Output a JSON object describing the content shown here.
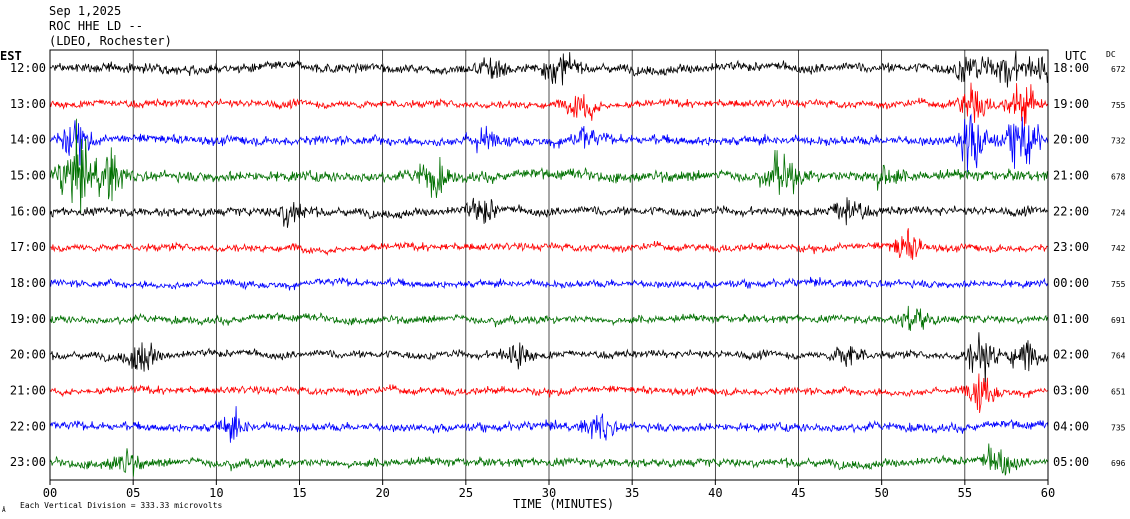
{
  "header": {
    "date": "Sep 1,2025",
    "station": "ROC HHE LD --",
    "network": "(LDEO, Rochester)"
  },
  "axis": {
    "left_label": "EST",
    "right_label": "UTC",
    "dc_label": "DC",
    "x_title": "TIME (MINUTES)",
    "x_ticks": [
      "00",
      "05",
      "10",
      "15",
      "20",
      "25",
      "30",
      "35",
      "40",
      "45",
      "50",
      "55",
      "60"
    ]
  },
  "footer": {
    "scale_note": "Each Vertical Division =  333.33 microvolts"
  },
  "colors": {
    "trace_cycle": [
      "#000000",
      "#ff0000",
      "#0000ff",
      "#007000"
    ],
    "grid": "#000000"
  },
  "chart_data": {
    "type": "line",
    "title": "ROC HHE LD --",
    "xlabel": "TIME (MINUTES)",
    "xlim": [
      0,
      60
    ],
    "rows": [
      {
        "est": "12:00",
        "utc": "18:00",
        "dc": "672",
        "color": "#000000",
        "amp": 0.45,
        "events": [
          {
            "t": 26.5,
            "a": 1.0
          },
          {
            "t": 30.5,
            "a": 1.2
          },
          {
            "t": 55.3,
            "a": 1.4
          },
          {
            "t": 57.5,
            "a": 1.6
          },
          {
            "t": 59.5,
            "a": 1.2
          }
        ]
      },
      {
        "est": "13:00",
        "utc": "19:00",
        "dc": "755",
        "color": "#ff0000",
        "amp": 0.35,
        "events": [
          {
            "t": 32.0,
            "a": 1.4
          },
          {
            "t": 55.5,
            "a": 1.8
          },
          {
            "t": 58.5,
            "a": 2.0
          }
        ]
      },
      {
        "est": "14:00",
        "utc": "20:00",
        "dc": "732",
        "color": "#0000ff",
        "amp": 0.45,
        "events": [
          {
            "t": 1.5,
            "a": 1.6
          },
          {
            "t": 26.0,
            "a": 1.0
          },
          {
            "t": 32.0,
            "a": 1.0
          },
          {
            "t": 55.5,
            "a": 3.0
          },
          {
            "t": 58.5,
            "a": 3.0
          }
        ]
      },
      {
        "est": "15:00",
        "utc": "21:00",
        "dc": "678",
        "color": "#007000",
        "amp": 0.5,
        "events": [
          {
            "t": 1.5,
            "a": 3.5
          },
          {
            "t": 3.5,
            "a": 2.5
          },
          {
            "t": 23.0,
            "a": 1.6
          },
          {
            "t": 44.0,
            "a": 2.0
          },
          {
            "t": 50.0,
            "a": 1.2
          }
        ]
      },
      {
        "est": "16:00",
        "utc": "22:00",
        "dc": "724",
        "color": "#000000",
        "amp": 0.4,
        "events": [
          {
            "t": 14.5,
            "a": 1.2
          },
          {
            "t": 26.0,
            "a": 1.2
          },
          {
            "t": 48.0,
            "a": 1.5
          }
        ]
      },
      {
        "est": "17:00",
        "utc": "23:00",
        "dc": "742",
        "color": "#ff0000",
        "amp": 0.35,
        "events": [
          {
            "t": 51.5,
            "a": 1.4
          }
        ]
      },
      {
        "est": "18:00",
        "utc": "00:00",
        "dc": "755",
        "color": "#0000ff",
        "amp": 0.35,
        "events": []
      },
      {
        "est": "19:00",
        "utc": "01:00",
        "dc": "691",
        "color": "#007000",
        "amp": 0.35,
        "events": [
          {
            "t": 52.0,
            "a": 1.2
          }
        ]
      },
      {
        "est": "20:00",
        "utc": "02:00",
        "dc": "764",
        "color": "#000000",
        "amp": 0.35,
        "events": [
          {
            "t": 5.5,
            "a": 1.6
          },
          {
            "t": 28.0,
            "a": 1.0
          },
          {
            "t": 48.0,
            "a": 1.2
          },
          {
            "t": 56.0,
            "a": 2.2
          },
          {
            "t": 58.5,
            "a": 1.4
          }
        ]
      },
      {
        "est": "21:00",
        "utc": "03:00",
        "dc": "651",
        "color": "#ff0000",
        "amp": 0.35,
        "events": [
          {
            "t": 56.0,
            "a": 1.6
          }
        ]
      },
      {
        "est": "22:00",
        "utc": "04:00",
        "dc": "735",
        "color": "#0000ff",
        "amp": 0.4,
        "events": [
          {
            "t": 11.0,
            "a": 1.2
          },
          {
            "t": 33.0,
            "a": 1.2
          }
        ]
      },
      {
        "est": "23:00",
        "utc": "05:00",
        "dc": "696",
        "color": "#007000",
        "amp": 0.4,
        "events": [
          {
            "t": 4.5,
            "a": 1.0
          },
          {
            "t": 57.0,
            "a": 1.4
          }
        ]
      }
    ]
  }
}
